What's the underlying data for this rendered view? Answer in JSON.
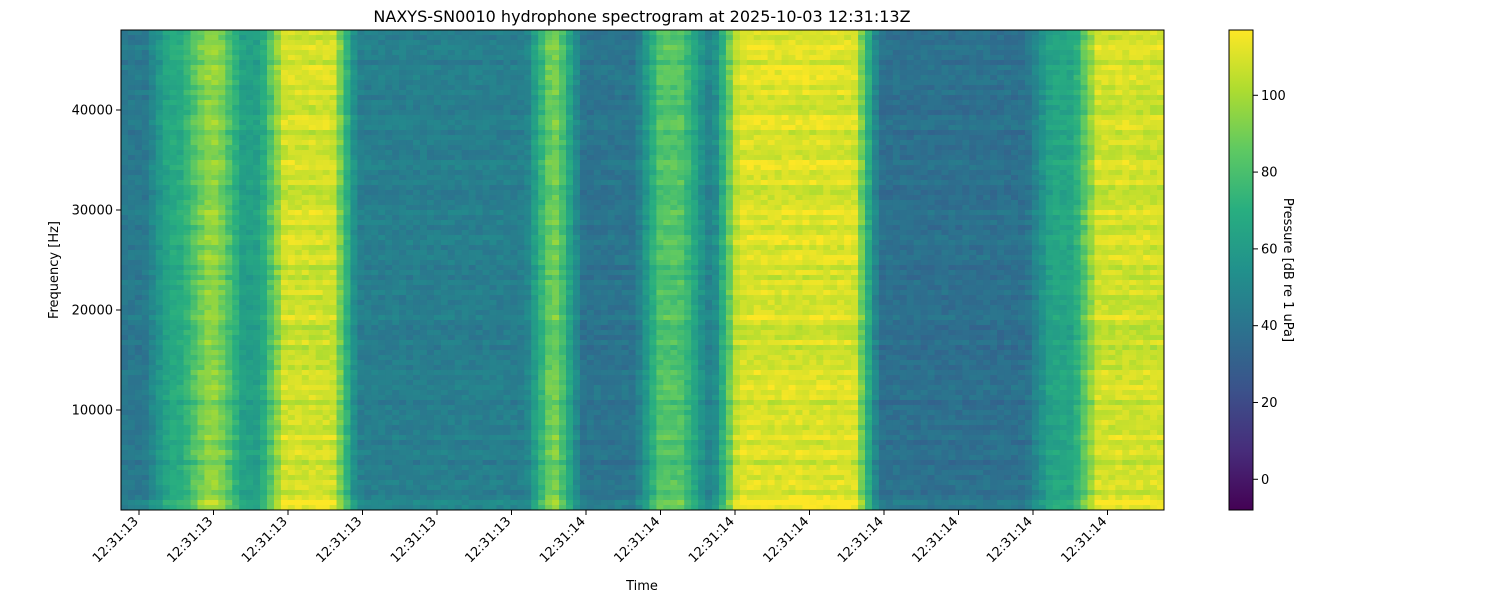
{
  "chart_data": {
    "type": "heatmap",
    "title": "NAXYS-SN0010 hydrophone spectrogram at 2025-10-03 12:31:13Z",
    "xlabel": "Time",
    "ylabel": "Frequency [Hz]",
    "colorbar_label": "Pressure [dB re 1 uPa]",
    "colormap": "viridis",
    "ylim": [
      0,
      48000
    ],
    "clim": [
      -8,
      117
    ],
    "x_ticks": [
      "12:31:13",
      "12:31:13",
      "12:31:13",
      "12:31:13",
      "12:31:13",
      "12:31:13",
      "12:31:14",
      "12:31:14",
      "12:31:14",
      "12:31:14",
      "12:31:14",
      "12:31:14",
      "12:31:14",
      "12:31:14"
    ],
    "y_ticks": [
      10000,
      20000,
      30000,
      40000
    ],
    "colorbar_ticks": [
      0,
      20,
      40,
      60,
      80,
      100
    ],
    "time_bands": [
      {
        "start": 0.0,
        "end": 0.035,
        "level": 42
      },
      {
        "start": 0.035,
        "end": 0.07,
        "level": 68
      },
      {
        "start": 0.07,
        "end": 0.105,
        "level": 95
      },
      {
        "start": 0.105,
        "end": 0.145,
        "level": 62
      },
      {
        "start": 0.145,
        "end": 0.215,
        "level": 108
      },
      {
        "start": 0.215,
        "end": 0.4,
        "level": 45
      },
      {
        "start": 0.4,
        "end": 0.43,
        "level": 90
      },
      {
        "start": 0.43,
        "end": 0.505,
        "level": 40
      },
      {
        "start": 0.505,
        "end": 0.55,
        "level": 82
      },
      {
        "start": 0.55,
        "end": 0.58,
        "level": 48
      },
      {
        "start": 0.58,
        "end": 0.715,
        "level": 110
      },
      {
        "start": 0.715,
        "end": 0.88,
        "level": 38
      },
      {
        "start": 0.88,
        "end": 0.925,
        "level": 65
      },
      {
        "start": 0.925,
        "end": 1.0,
        "level": 108
      }
    ]
  }
}
